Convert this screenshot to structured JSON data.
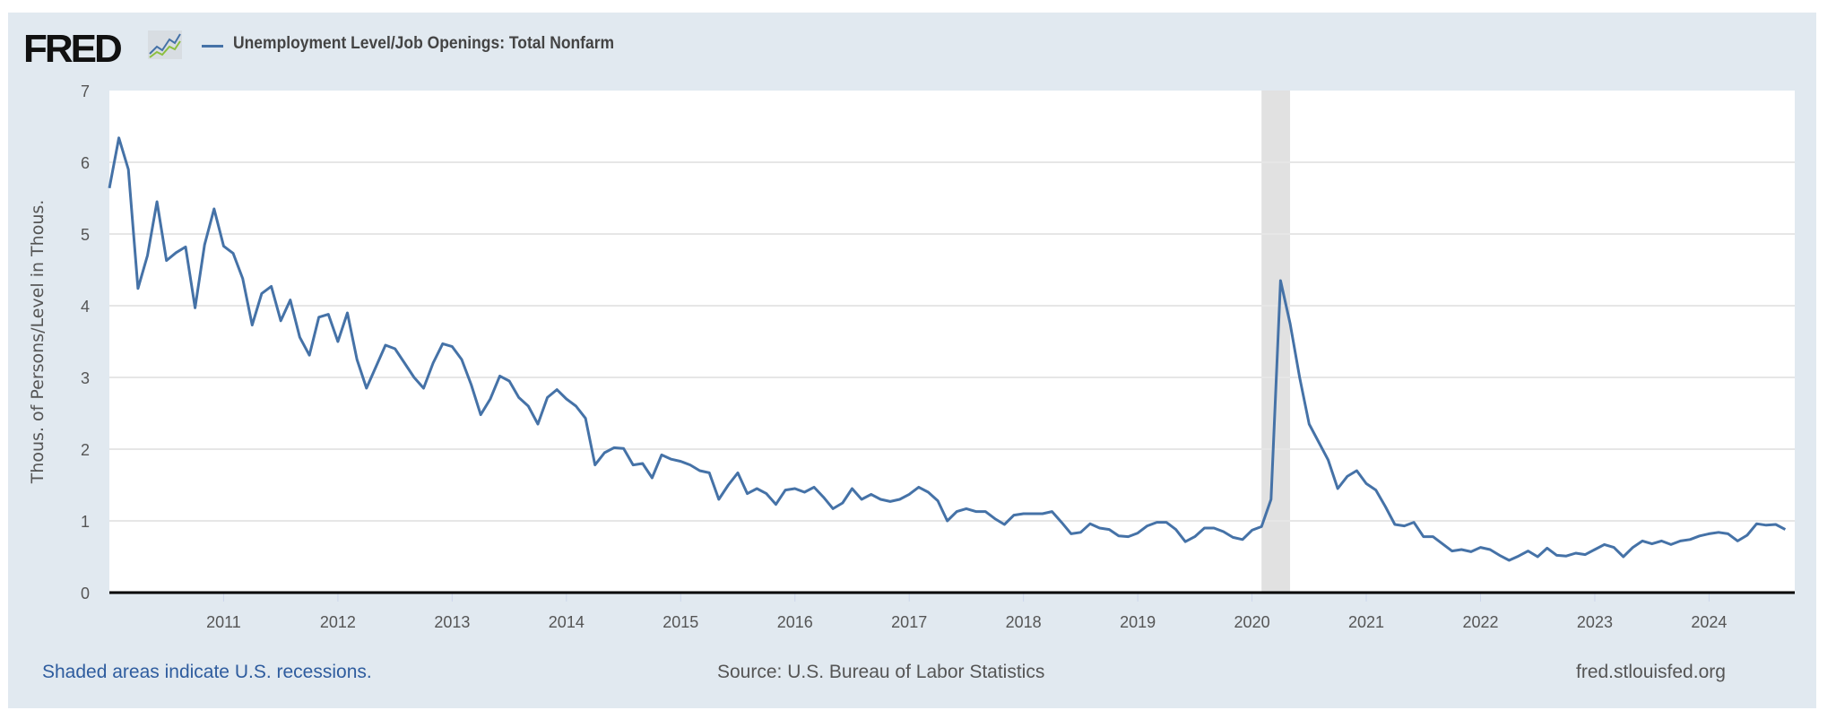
{
  "header": {
    "logo": "FRED",
    "legend_label": "Unemployment Level/Job Openings: Total Nonfarm"
  },
  "footer": {
    "recession_note": "Shaded areas indicate U.S. recessions.",
    "source": "Source: U.S. Bureau of Labor Statistics",
    "site": "fred.stlouisfed.org"
  },
  "colors": {
    "series": "#4572a7",
    "recession": "#e1e1e1",
    "frame": "#e1e9f0",
    "grid": "#e6e6e6"
  },
  "chart_data": {
    "type": "line",
    "title": "",
    "ylabel": "Thous. of Persons/Level in Thous.",
    "xlabel": "",
    "ylim": [
      0,
      7
    ],
    "yticks": [
      0,
      1,
      2,
      3,
      4,
      5,
      6,
      7
    ],
    "xlim": [
      "2010-01",
      "2024-10"
    ],
    "xticks": [
      "2011",
      "2012",
      "2013",
      "2014",
      "2015",
      "2016",
      "2017",
      "2018",
      "2019",
      "2020",
      "2021",
      "2022",
      "2023",
      "2024"
    ],
    "grid": true,
    "legend": "top-left",
    "recessions": [
      {
        "start": "2020-02",
        "end": "2020-04"
      }
    ],
    "start": "2010-01",
    "frequency": "monthly",
    "series": [
      {
        "name": "Unemployment Level/Job Openings: Total Nonfarm",
        "values": [
          5.64,
          6.34,
          5.9,
          4.24,
          4.7,
          5.45,
          4.63,
          4.74,
          4.82,
          3.97,
          4.85,
          5.35,
          4.83,
          4.73,
          4.38,
          3.73,
          4.17,
          4.27,
          3.79,
          4.08,
          3.56,
          3.31,
          3.84,
          3.88,
          3.5,
          3.9,
          3.25,
          2.85,
          3.15,
          3.45,
          3.4,
          3.2,
          3.0,
          2.85,
          3.2,
          3.47,
          3.43,
          3.25,
          2.9,
          2.48,
          2.7,
          3.02,
          2.95,
          2.72,
          2.6,
          2.35,
          2.72,
          2.83,
          2.7,
          2.6,
          2.43,
          1.78,
          1.95,
          2.02,
          2.01,
          1.78,
          1.8,
          1.6,
          1.92,
          1.86,
          1.83,
          1.78,
          1.7,
          1.67,
          1.3,
          1.5,
          1.67,
          1.38,
          1.45,
          1.38,
          1.23,
          1.43,
          1.45,
          1.4,
          1.47,
          1.33,
          1.17,
          1.25,
          1.45,
          1.3,
          1.37,
          1.3,
          1.27,
          1.3,
          1.37,
          1.47,
          1.4,
          1.28,
          1.0,
          1.13,
          1.17,
          1.13,
          1.13,
          1.03,
          0.95,
          1.08,
          1.1,
          1.1,
          1.1,
          1.13,
          0.98,
          0.82,
          0.84,
          0.96,
          0.9,
          0.88,
          0.79,
          0.78,
          0.83,
          0.93,
          0.98,
          0.98,
          0.88,
          0.71,
          0.78,
          0.9,
          0.9,
          0.85,
          0.77,
          0.74,
          0.87,
          0.92,
          1.3,
          4.35,
          3.75,
          3.0,
          2.35,
          2.1,
          1.85,
          1.45,
          1.62,
          1.7,
          1.52,
          1.43,
          1.2,
          0.95,
          0.93,
          0.98,
          0.78,
          0.78,
          0.68,
          0.58,
          0.6,
          0.57,
          0.63,
          0.6,
          0.52,
          0.45,
          0.51,
          0.58,
          0.5,
          0.62,
          0.52,
          0.51,
          0.55,
          0.53,
          0.6,
          0.67,
          0.63,
          0.5,
          0.63,
          0.72,
          0.68,
          0.72,
          0.67,
          0.72,
          0.74,
          0.79,
          0.82,
          0.84,
          0.82,
          0.72,
          0.8,
          0.96,
          0.94,
          0.95,
          0.88
        ]
      }
    ]
  }
}
